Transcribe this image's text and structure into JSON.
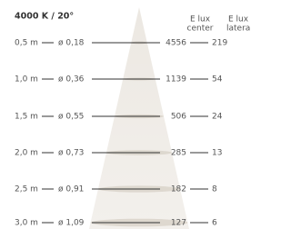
{
  "header": {
    "title": "4000 K / 20°",
    "columns": [
      {
        "line1": "E lux",
        "line2": "center"
      },
      {
        "line1": "E lux",
        "line2": "lateral"
      }
    ]
  },
  "rows": [
    {
      "distance": "0,5 m",
      "diameter": "ø 0,18",
      "center": "4556",
      "lateral": "219"
    },
    {
      "distance": "1,0 m",
      "diameter": "ø 0,36",
      "center": "1139",
      "lateral": "54"
    },
    {
      "distance": "1,5 m",
      "diameter": "ø 0,55",
      "center": "506",
      "lateral": "24"
    },
    {
      "distance": "2,0 m",
      "diameter": "ø 0,73",
      "center": "285",
      "lateral": "13"
    },
    {
      "distance": "2,5 m",
      "diameter": "ø 0,91",
      "center": "182",
      "lateral": "8"
    },
    {
      "distance": "3,0 m",
      "diameter": "ø 1,09",
      "center": "127",
      "lateral": "6"
    }
  ]
}
